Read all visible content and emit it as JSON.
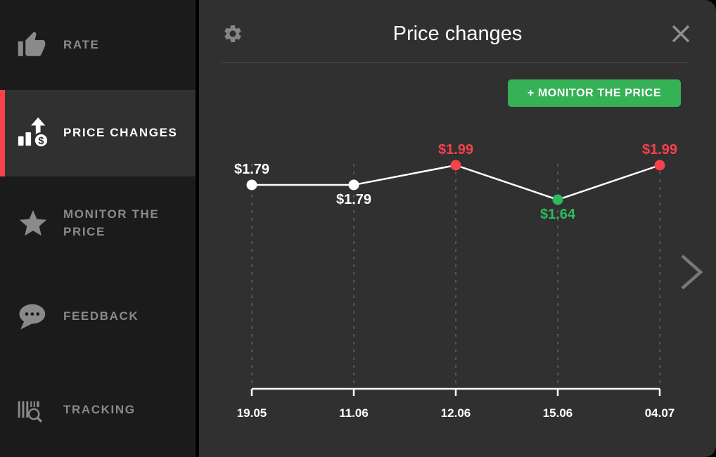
{
  "sidebar": {
    "accent_color": "#fa4249",
    "items": [
      {
        "label": "RATE",
        "icon": "thumb-up-icon",
        "active": false
      },
      {
        "label": "PRICE CHANGES",
        "icon": "price-growth-icon",
        "active": true
      },
      {
        "label": "MONITOR THE PRICE",
        "icon": "star-icon",
        "active": false
      },
      {
        "label": "FEEDBACK",
        "icon": "chat-bubble-icon",
        "active": false
      },
      {
        "label": "TRACKING",
        "icon": "barcode-search-icon",
        "active": false
      }
    ]
  },
  "header": {
    "title": "Price changes"
  },
  "toolbar": {
    "monitor_button_label": "+ MONITOR THE PRICE",
    "monitor_button_color": "#35b156"
  },
  "chart_data": {
    "type": "line",
    "title": "Price changes",
    "x": [
      "19.05",
      "11.06",
      "12.06",
      "15.06",
      "04.07"
    ],
    "values": [
      1.79,
      1.79,
      1.99,
      1.64,
      1.99
    ],
    "labels": [
      "$1.79",
      "$1.79",
      "$1.99",
      "$1.64",
      "$1.99"
    ],
    "label_positions": [
      "above",
      "below",
      "above",
      "below",
      "above"
    ],
    "point_colors": [
      "#ffffff",
      "#ffffff",
      "#f7414d",
      "#2dba5c",
      "#f7414d"
    ],
    "line_color": "#ffffff",
    "axis_color": "#ffffff",
    "gridline_color": "#565656",
    "grid": "vertical-dashed",
    "legend": "none",
    "ylim": [
      1.6,
      2.05
    ]
  },
  "pagination": {
    "next_label": "next"
  }
}
